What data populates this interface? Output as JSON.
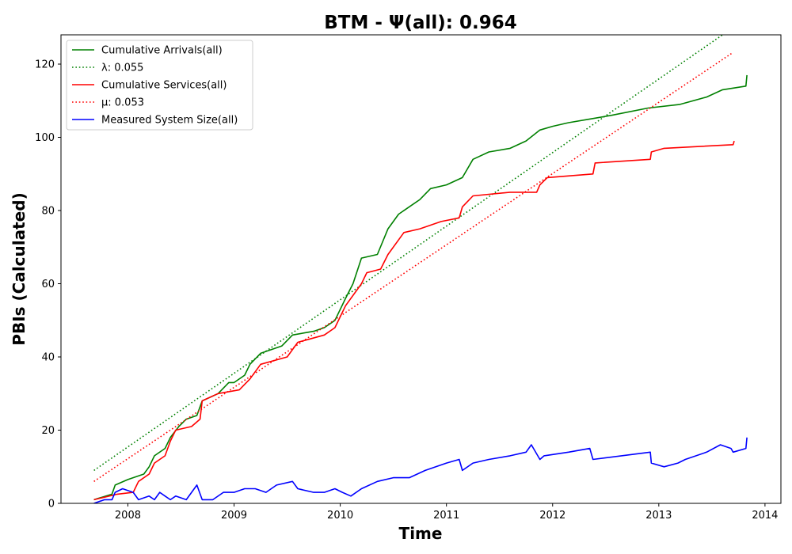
{
  "chart_data": {
    "type": "line",
    "title": "BTM -  Ψ(all): 0.964",
    "xlabel": "Time",
    "ylabel": "PBIs (Calculated)",
    "xlim": [
      2007.37,
      2014.15
    ],
    "ylim": [
      0,
      128
    ],
    "x_ticks": [
      2008,
      2009,
      2010,
      2011,
      2012,
      2013,
      2014
    ],
    "y_ticks": [
      0,
      20,
      40,
      60,
      80,
      100,
      120
    ],
    "grid": false,
    "legend_position": "top-left",
    "series": [
      {
        "name": "Cumulative Arrivals(all)",
        "color": "#008000",
        "style": "solid",
        "points": [
          [
            2007.68,
            1
          ],
          [
            2007.85,
            2.5
          ],
          [
            2007.88,
            5
          ],
          [
            2008.0,
            6.5
          ],
          [
            2008.15,
            8
          ],
          [
            2008.2,
            10
          ],
          [
            2008.25,
            13
          ],
          [
            2008.35,
            15
          ],
          [
            2008.4,
            18
          ],
          [
            2008.48,
            21
          ],
          [
            2008.55,
            23
          ],
          [
            2008.65,
            24
          ],
          [
            2008.7,
            28
          ],
          [
            2008.85,
            30
          ],
          [
            2008.95,
            33
          ],
          [
            2009.0,
            33
          ],
          [
            2009.1,
            35
          ],
          [
            2009.15,
            38
          ],
          [
            2009.25,
            41
          ],
          [
            2009.35,
            42
          ],
          [
            2009.45,
            43
          ],
          [
            2009.55,
            46
          ],
          [
            2009.75,
            47
          ],
          [
            2009.85,
            48
          ],
          [
            2009.95,
            50
          ],
          [
            2010.05,
            56
          ],
          [
            2010.12,
            60
          ],
          [
            2010.2,
            67
          ],
          [
            2010.35,
            68
          ],
          [
            2010.45,
            75
          ],
          [
            2010.55,
            79
          ],
          [
            2010.75,
            83
          ],
          [
            2010.85,
            86
          ],
          [
            2011.0,
            87
          ],
          [
            2011.15,
            89
          ],
          [
            2011.25,
            94
          ],
          [
            2011.4,
            96
          ],
          [
            2011.6,
            97
          ],
          [
            2011.75,
            99
          ],
          [
            2011.88,
            102
          ],
          [
            2012.0,
            103
          ],
          [
            2012.15,
            104
          ],
          [
            2012.35,
            105
          ],
          [
            2012.55,
            106
          ],
          [
            2012.9,
            108
          ],
          [
            2013.2,
            109
          ],
          [
            2013.45,
            111
          ],
          [
            2013.6,
            113
          ],
          [
            2013.82,
            114
          ],
          [
            2013.83,
            117
          ]
        ]
      },
      {
        "name": "λ: 0.055",
        "color": "#008000",
        "style": "dotted",
        "points": [
          [
            2007.68,
            9
          ],
          [
            2013.6,
            128
          ]
        ]
      },
      {
        "name": "Cumulative Services(all)",
        "color": "#ff0000",
        "style": "solid",
        "points": [
          [
            2007.68,
            1
          ],
          [
            2007.9,
            2.5
          ],
          [
            2008.05,
            3
          ],
          [
            2008.1,
            6
          ],
          [
            2008.2,
            8
          ],
          [
            2008.25,
            11
          ],
          [
            2008.35,
            13
          ],
          [
            2008.4,
            17
          ],
          [
            2008.45,
            20
          ],
          [
            2008.6,
            21
          ],
          [
            2008.68,
            23
          ],
          [
            2008.7,
            28
          ],
          [
            2008.85,
            30
          ],
          [
            2009.05,
            31
          ],
          [
            2009.15,
            34
          ],
          [
            2009.25,
            38
          ],
          [
            2009.5,
            40
          ],
          [
            2009.6,
            44
          ],
          [
            2009.85,
            46
          ],
          [
            2009.95,
            48
          ],
          [
            2010.05,
            54
          ],
          [
            2010.2,
            60
          ],
          [
            2010.25,
            63
          ],
          [
            2010.38,
            64
          ],
          [
            2010.45,
            68
          ],
          [
            2010.6,
            74
          ],
          [
            2010.75,
            75
          ],
          [
            2010.95,
            77
          ],
          [
            2011.12,
            78
          ],
          [
            2011.15,
            81
          ],
          [
            2011.25,
            84
          ],
          [
            2011.6,
            85
          ],
          [
            2011.85,
            85
          ],
          [
            2011.88,
            87
          ],
          [
            2011.95,
            89
          ],
          [
            2012.38,
            90
          ],
          [
            2012.4,
            93
          ],
          [
            2012.92,
            94
          ],
          [
            2012.93,
            96
          ],
          [
            2013.05,
            97
          ],
          [
            2013.7,
            98
          ],
          [
            2013.71,
            99
          ]
        ]
      },
      {
        "name": "μ: 0.053",
        "color": "#ff0000",
        "style": "dotted",
        "points": [
          [
            2007.68,
            6
          ],
          [
            2013.69,
            123
          ]
        ]
      },
      {
        "name": "Measured System Size(all)",
        "color": "#0000ff",
        "style": "solid",
        "points": [
          [
            2007.68,
            0
          ],
          [
            2007.78,
            1
          ],
          [
            2007.85,
            1
          ],
          [
            2007.88,
            3
          ],
          [
            2007.95,
            4
          ],
          [
            2008.05,
            3
          ],
          [
            2008.1,
            1
          ],
          [
            2008.2,
            2
          ],
          [
            2008.25,
            1
          ],
          [
            2008.3,
            3
          ],
          [
            2008.35,
            2
          ],
          [
            2008.4,
            1
          ],
          [
            2008.45,
            2
          ],
          [
            2008.55,
            1
          ],
          [
            2008.6,
            3
          ],
          [
            2008.65,
            5
          ],
          [
            2008.7,
            1
          ],
          [
            2008.8,
            1
          ],
          [
            2008.9,
            3
          ],
          [
            2009.0,
            3
          ],
          [
            2009.1,
            4
          ],
          [
            2009.2,
            4
          ],
          [
            2009.3,
            3
          ],
          [
            2009.4,
            5
          ],
          [
            2009.55,
            6
          ],
          [
            2009.6,
            4
          ],
          [
            2009.75,
            3
          ],
          [
            2009.85,
            3
          ],
          [
            2009.95,
            4
          ],
          [
            2010.02,
            3
          ],
          [
            2010.1,
            2
          ],
          [
            2010.2,
            4
          ],
          [
            2010.35,
            6
          ],
          [
            2010.5,
            7
          ],
          [
            2010.65,
            7
          ],
          [
            2010.8,
            9
          ],
          [
            2010.9,
            10
          ],
          [
            2011.0,
            11
          ],
          [
            2011.12,
            12
          ],
          [
            2011.15,
            9
          ],
          [
            2011.25,
            11
          ],
          [
            2011.4,
            12
          ],
          [
            2011.6,
            13
          ],
          [
            2011.75,
            14
          ],
          [
            2011.8,
            16
          ],
          [
            2011.88,
            12
          ],
          [
            2011.92,
            13
          ],
          [
            2012.15,
            14
          ],
          [
            2012.35,
            15
          ],
          [
            2012.38,
            12
          ],
          [
            2012.92,
            14
          ],
          [
            2012.93,
            11
          ],
          [
            2013.05,
            10
          ],
          [
            2013.18,
            11
          ],
          [
            2013.25,
            12
          ],
          [
            2013.45,
            14
          ],
          [
            2013.58,
            16
          ],
          [
            2013.68,
            15
          ],
          [
            2013.7,
            14
          ],
          [
            2013.82,
            15
          ],
          [
            2013.83,
            18
          ]
        ]
      }
    ]
  }
}
